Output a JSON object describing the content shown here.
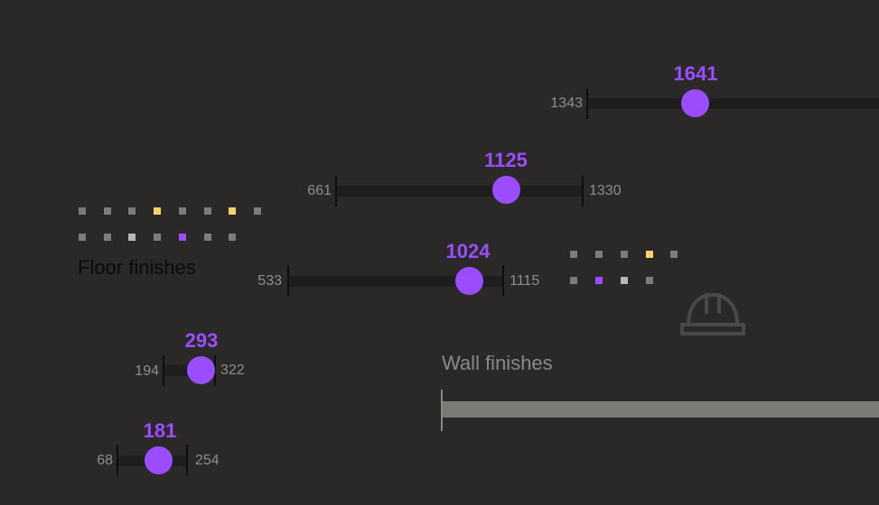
{
  "sliders": [
    {
      "min": "1343",
      "max": "",
      "value": "1641"
    },
    {
      "min": "661",
      "max": "1330",
      "value": "1125"
    },
    {
      "min": "533",
      "max": "1115",
      "value": "1024"
    },
    {
      "min": "194",
      "max": "322",
      "value": "293"
    },
    {
      "min": "68",
      "max": "254",
      "value": "181"
    }
  ],
  "labels": {
    "floor": "Floor finishes",
    "wall": "Wall finishes"
  },
  "colors": {
    "background": "#2a2928",
    "accent": "#9b4dff",
    "dot_gray": "#7d7c7a",
    "dot_light": "#b8b7b5",
    "dot_yellow": "#f4d06f",
    "dot_purple": "#9b4dff"
  },
  "icons": {
    "helmet": "hard-hat-icon"
  }
}
